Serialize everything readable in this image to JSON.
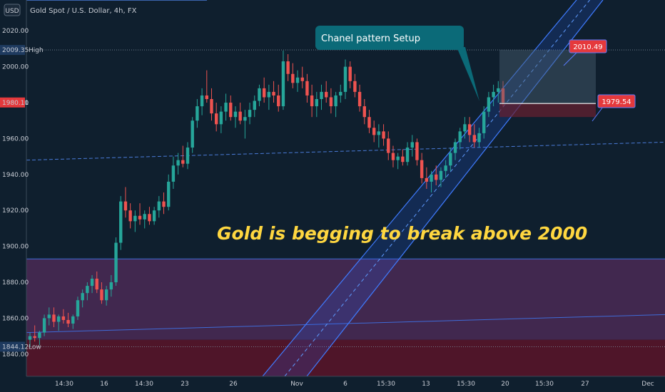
{
  "header": {
    "currency": "USD",
    "title": "Gold Spot / U.S. Dollar, 4h, FX"
  },
  "colors": {
    "background": "#0f1f2e",
    "bull": "#26a69a",
    "bear": "#ef5350",
    "channel_line": "#2962ff",
    "channel_fill": "#2962ff",
    "zone_upper": "#4a2a55",
    "zone_lower": "#5a1428",
    "callout": "#0b6a78",
    "headline": "#ffd740",
    "price_label": "#e5393c"
  },
  "chart_data": {
    "type": "candlestick",
    "y_ticks": [
      "2020.00",
      "2000.00",
      "1980.00",
      "1960.00",
      "1940.00",
      "1920.00",
      "1900.00",
      "1880.00",
      "1860.00",
      "1840.00"
    ],
    "x_ticks": [
      "14:30",
      "16",
      "14:30",
      "23",
      "26",
      "Nov",
      "6",
      "15:30",
      "13",
      "15:30",
      "20",
      "15:30",
      "27",
      "Dec"
    ],
    "ylim": [
      1838,
      2035
    ],
    "high_label": "2009.35",
    "high_tag": "High",
    "low_label": "1844.12",
    "low_tag": "Low",
    "current_price": "1980.11",
    "target_label": "2010.49",
    "stop_label": "1979.54",
    "callout_text": "Chanel pattern Setup",
    "headline_text": "Gold is begging to break above 2000",
    "candles": [
      [
        1848,
        1852,
        1844,
        1850
      ],
      [
        1850,
        1856,
        1847,
        1849
      ],
      [
        1849,
        1853,
        1845,
        1852
      ],
      [
        1852,
        1862,
        1850,
        1860
      ],
      [
        1860,
        1866,
        1856,
        1862
      ],
      [
        1862,
        1866,
        1855,
        1858
      ],
      [
        1858,
        1862,
        1853,
        1861
      ],
      [
        1861,
        1865,
        1857,
        1859
      ],
      [
        1859,
        1863,
        1855,
        1857
      ],
      [
        1857,
        1862,
        1854,
        1861
      ],
      [
        1861,
        1872,
        1859,
        1870
      ],
      [
        1870,
        1876,
        1866,
        1874
      ],
      [
        1874,
        1880,
        1870,
        1878
      ],
      [
        1878,
        1884,
        1874,
        1882
      ],
      [
        1882,
        1886,
        1874,
        1876
      ],
      [
        1876,
        1880,
        1868,
        1870
      ],
      [
        1870,
        1878,
        1867,
        1876
      ],
      [
        1876,
        1884,
        1872,
        1880
      ],
      [
        1880,
        1905,
        1878,
        1902
      ],
      [
        1902,
        1928,
        1898,
        1925
      ],
      [
        1925,
        1933,
        1916,
        1920
      ],
      [
        1920,
        1924,
        1910,
        1914
      ],
      [
        1914,
        1920,
        1908,
        1917
      ],
      [
        1917,
        1924,
        1912,
        1915
      ],
      [
        1915,
        1920,
        1910,
        1918
      ],
      [
        1918,
        1922,
        1912,
        1914
      ],
      [
        1914,
        1922,
        1912,
        1920
      ],
      [
        1920,
        1928,
        1916,
        1925
      ],
      [
        1925,
        1930,
        1918,
        1922
      ],
      [
        1922,
        1940,
        1920,
        1936
      ],
      [
        1936,
        1950,
        1932,
        1945
      ],
      [
        1945,
        1952,
        1940,
        1948
      ],
      [
        1948,
        1956,
        1944,
        1946
      ],
      [
        1946,
        1958,
        1943,
        1955
      ],
      [
        1955,
        1972,
        1952,
        1970
      ],
      [
        1970,
        1982,
        1966,
        1978
      ],
      [
        1978,
        1988,
        1973,
        1984
      ],
      [
        1984,
        1998,
        1980,
        1982
      ],
      [
        1982,
        1988,
        1970,
        1974
      ],
      [
        1974,
        1980,
        1964,
        1968
      ],
      [
        1968,
        1978,
        1963,
        1975
      ],
      [
        1975,
        1985,
        1970,
        1980
      ],
      [
        1980,
        1984,
        1970,
        1972
      ],
      [
        1972,
        1978,
        1966,
        1975
      ],
      [
        1975,
        1980,
        1968,
        1970
      ],
      [
        1970,
        1976,
        1960,
        1972
      ],
      [
        1972,
        1980,
        1968,
        1976
      ],
      [
        1976,
        1984,
        1972,
        1981
      ],
      [
        1981,
        1990,
        1978,
        1988
      ],
      [
        1988,
        1994,
        1980,
        1983
      ],
      [
        1983,
        1990,
        1976,
        1986
      ],
      [
        1986,
        1992,
        1980,
        1984
      ],
      [
        1984,
        1990,
        1975,
        1978
      ],
      [
        1978,
        2009,
        1976,
        2003
      ],
      [
        2003,
        2007,
        1992,
        1996
      ],
      [
        1996,
        2002,
        1988,
        1991
      ],
      [
        1991,
        1998,
        1986,
        1994
      ],
      [
        1994,
        2000,
        1988,
        1992
      ],
      [
        1992,
        1996,
        1980,
        1984
      ],
      [
        1984,
        1990,
        1972,
        1978
      ],
      [
        1978,
        1986,
        1972,
        1982
      ],
      [
        1982,
        1990,
        1976,
        1986
      ],
      [
        1986,
        1992,
        1980,
        1983
      ],
      [
        1983,
        1988,
        1974,
        1978
      ],
      [
        1978,
        1986,
        1972,
        1984
      ],
      [
        1984,
        1990,
        1980,
        1986
      ],
      [
        1986,
        2004,
        1982,
        2000
      ],
      [
        2000,
        2003,
        1988,
        1992
      ],
      [
        1992,
        1996,
        1983,
        1986
      ],
      [
        1986,
        1990,
        1975,
        1978
      ],
      [
        1978,
        1982,
        1968,
        1972
      ],
      [
        1972,
        1976,
        1963,
        1966
      ],
      [
        1966,
        1970,
        1958,
        1962
      ],
      [
        1962,
        1968,
        1955,
        1964
      ],
      [
        1964,
        1968,
        1956,
        1960
      ],
      [
        1960,
        1964,
        1948,
        1952
      ],
      [
        1952,
        1956,
        1944,
        1948
      ],
      [
        1948,
        1952,
        1943,
        1950
      ],
      [
        1950,
        1954,
        1945,
        1947
      ],
      [
        1947,
        1958,
        1945,
        1955
      ],
      [
        1955,
        1962,
        1950,
        1958
      ],
      [
        1958,
        1960,
        1945,
        1948
      ],
      [
        1948,
        1952,
        1935,
        1938
      ],
      [
        1938,
        1944,
        1932,
        1936
      ],
      [
        1936,
        1942,
        1930,
        1940
      ],
      [
        1940,
        1945,
        1934,
        1937
      ],
      [
        1937,
        1944,
        1933,
        1942
      ],
      [
        1942,
        1948,
        1938,
        1945
      ],
      [
        1945,
        1955,
        1942,
        1952
      ],
      [
        1952,
        1960,
        1948,
        1958
      ],
      [
        1958,
        1966,
        1954,
        1964
      ],
      [
        1964,
        1972,
        1960,
        1968
      ],
      [
        1968,
        1972,
        1958,
        1962
      ],
      [
        1962,
        1968,
        1955,
        1958
      ],
      [
        1958,
        1966,
        1955,
        1963
      ],
      [
        1963,
        1978,
        1960,
        1975
      ],
      [
        1975,
        1986,
        1972,
        1983
      ],
      [
        1983,
        1990,
        1978,
        1986
      ],
      [
        1986,
        1992,
        1980,
        1988
      ],
      [
        1988,
        1992,
        1978,
        1980
      ]
    ]
  }
}
